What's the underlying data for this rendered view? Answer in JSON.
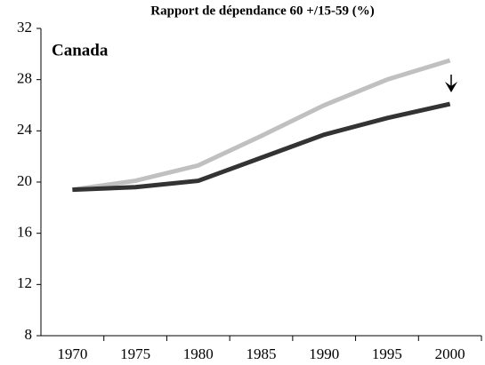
{
  "chart_data": {
    "type": "line",
    "title": "Rapport de dépendance 60 +/15-59 (%)",
    "annotation": "Canada",
    "categories": [
      "1970",
      "1975",
      "1980",
      "1985",
      "1990",
      "1995",
      "2000"
    ],
    "series": [
      {
        "color": "#c0c0c0",
        "values": [
          19.4,
          20.1,
          21.3,
          23.6,
          26.0,
          28.0,
          29.5
        ]
      },
      {
        "color": "#333333",
        "values": [
          19.4,
          19.6,
          20.1,
          21.9,
          23.7,
          25.0,
          26.1
        ]
      }
    ],
    "ylim": [
      8,
      32
    ],
    "yticks": [
      8,
      12,
      16,
      20,
      24,
      28,
      32
    ],
    "grid": false
  }
}
